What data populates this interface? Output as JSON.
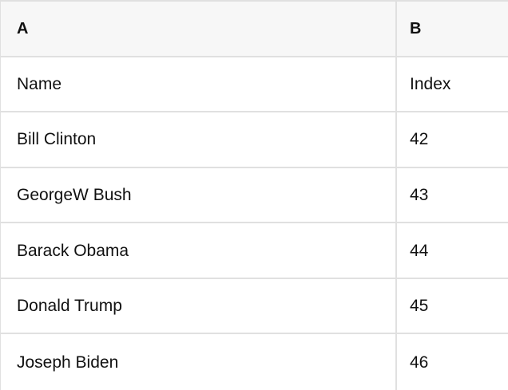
{
  "sheet": {
    "columns": [
      {
        "label": "A"
      },
      {
        "label": "B"
      }
    ],
    "rows": [
      {
        "A": "Name",
        "B": "Index"
      },
      {
        "A": "Bill Clinton",
        "B": "42"
      },
      {
        "A": "GeorgeW Bush",
        "B": "43"
      },
      {
        "A": "Barack Obama",
        "B": "44"
      },
      {
        "A": "Donald Trump",
        "B": "45"
      },
      {
        "A": "Joseph Biden",
        "B": "46"
      }
    ],
    "colors": {
      "header_bg": "#f7f7f7",
      "row_bg": "#ffffff",
      "border": "#e0e0e0",
      "text": "#111111"
    }
  }
}
